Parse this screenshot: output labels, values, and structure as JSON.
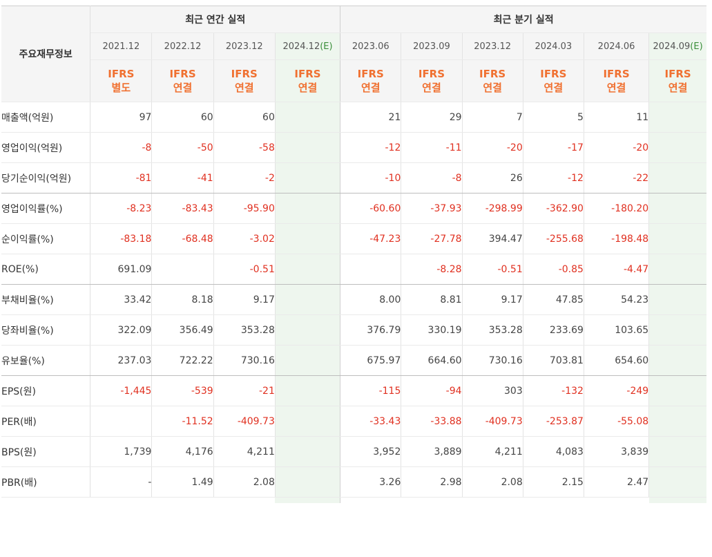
{
  "header": {
    "corner_label": "주요재무정보",
    "annual_title": "최근 연간 실적",
    "quarterly_title": "최근 분기 실적"
  },
  "periods": [
    {
      "label": "2021.12",
      "est": "",
      "ifrs": "IFRS",
      "basis": "별도"
    },
    {
      "label": "2022.12",
      "est": "",
      "ifrs": "IFRS",
      "basis": "연결"
    },
    {
      "label": "2023.12",
      "est": "",
      "ifrs": "IFRS",
      "basis": "연결"
    },
    {
      "label": "2024.12",
      "est": "(E)",
      "ifrs": "IFRS",
      "basis": "연결"
    },
    {
      "label": "2023.06",
      "est": "",
      "ifrs": "IFRS",
      "basis": "연결"
    },
    {
      "label": "2023.09",
      "est": "",
      "ifrs": "IFRS",
      "basis": "연결"
    },
    {
      "label": "2023.12",
      "est": "",
      "ifrs": "IFRS",
      "basis": "연결"
    },
    {
      "label": "2024.03",
      "est": "",
      "ifrs": "IFRS",
      "basis": "연결"
    },
    {
      "label": "2024.06",
      "est": "",
      "ifrs": "IFRS",
      "basis": "연결"
    },
    {
      "label": "2024.09",
      "est": "(E)",
      "ifrs": "IFRS",
      "basis": "연결"
    }
  ],
  "rows": [
    {
      "label": "매출액(억원)",
      "values": [
        "97",
        "60",
        "60",
        "",
        "21",
        "29",
        "7",
        "5",
        "11",
        ""
      ]
    },
    {
      "label": "영업이익(억원)",
      "values": [
        "-8",
        "-50",
        "-58",
        "",
        "-12",
        "-11",
        "-20",
        "-17",
        "-20",
        ""
      ]
    },
    {
      "label": "당기순이익(억원)",
      "values": [
        "-81",
        "-41",
        "-2",
        "",
        "-10",
        "-8",
        "26",
        "-12",
        "-22",
        ""
      ]
    },
    {
      "label": "영업이익률(%)",
      "values": [
        "-8.23",
        "-83.43",
        "-95.90",
        "",
        "-60.60",
        "-37.93",
        "-298.99",
        "-362.90",
        "-180.20",
        ""
      ]
    },
    {
      "label": "순이익률(%)",
      "values": [
        "-83.18",
        "-68.48",
        "-3.02",
        "",
        "-47.23",
        "-27.78",
        "394.47",
        "-255.68",
        "-198.48",
        ""
      ]
    },
    {
      "label": "ROE(%)",
      "values": [
        "691.09",
        "",
        "-0.51",
        "",
        "",
        "-8.28",
        "-0.51",
        "-0.85",
        "-4.47",
        ""
      ]
    },
    {
      "label": "부채비율(%)",
      "values": [
        "33.42",
        "8.18",
        "9.17",
        "",
        "8.00",
        "8.81",
        "9.17",
        "47.85",
        "54.23",
        ""
      ]
    },
    {
      "label": "당좌비율(%)",
      "values": [
        "322.09",
        "356.49",
        "353.28",
        "",
        "376.79",
        "330.19",
        "353.28",
        "233.69",
        "103.65",
        ""
      ]
    },
    {
      "label": "유보율(%)",
      "values": [
        "237.03",
        "722.22",
        "730.16",
        "",
        "675.97",
        "664.60",
        "730.16",
        "703.81",
        "654.60",
        ""
      ]
    },
    {
      "label": "EPS(원)",
      "values": [
        "-1,445",
        "-539",
        "-21",
        "",
        "-115",
        "-94",
        "303",
        "-132",
        "-249",
        ""
      ]
    },
    {
      "label": "PER(배)",
      "values": [
        "",
        "-11.52",
        "-409.73",
        "",
        "-33.43",
        "-33.88",
        "-409.73",
        "-253.87",
        "-55.08",
        ""
      ]
    },
    {
      "label": "BPS(원)",
      "values": [
        "1,739",
        "4,176",
        "4,211",
        "",
        "3,952",
        "3,889",
        "4,211",
        "4,083",
        "3,839",
        ""
      ]
    },
    {
      "label": "PBR(배)",
      "values": [
        "-",
        "1.49",
        "2.08",
        "",
        "3.26",
        "2.98",
        "2.08",
        "2.15",
        "2.47",
        ""
      ]
    }
  ],
  "colors": {
    "header_bg": "#f5f5f5",
    "ifrs_text": "#f07030",
    "negative_text": "#e03020",
    "estimate_bg": "#eef6ee",
    "estimate_label": "#3a8f3a"
  }
}
